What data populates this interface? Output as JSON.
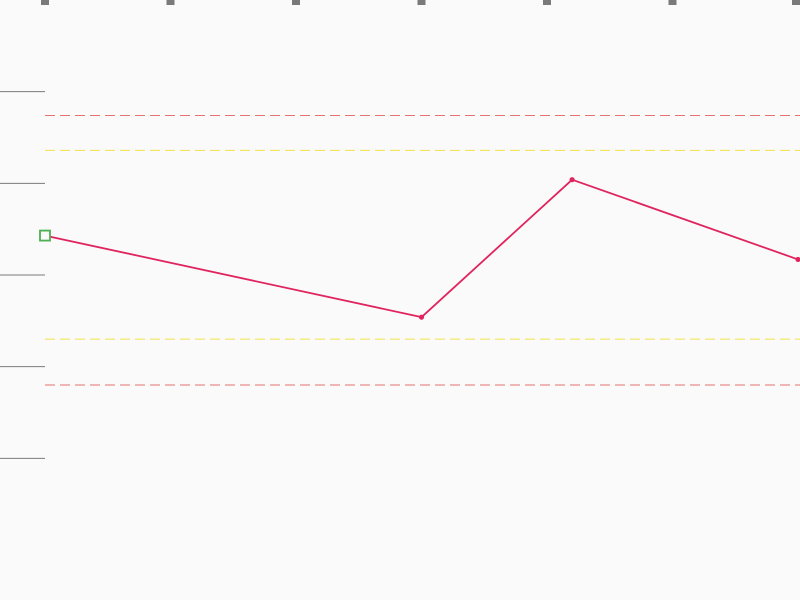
{
  "chart_data": {
    "type": "line",
    "title": "",
    "xlabel": "",
    "ylabel": "",
    "x": [
      0,
      3,
      4.2,
      6
    ],
    "xlim": [
      0,
      6
    ],
    "x_ticks": [
      0,
      1,
      2,
      3,
      4,
      5,
      6
    ],
    "ylim": [
      0,
      6
    ],
    "y_ticks": [
      1,
      2,
      3,
      4,
      5
    ],
    "series": [
      {
        "values": [
          3.43,
          2.54,
          4.04,
          3.17
        ],
        "color": "#e0245e"
      }
    ],
    "first_point_marker": {
      "shape": "hollow-square",
      "color": "#4caf50"
    },
    "reference_lines": [
      {
        "y": 4.74,
        "color": "#e57373",
        "style": "dashed"
      },
      {
        "y": 4.36,
        "color": "#f2e04b",
        "style": "dashed"
      },
      {
        "y": 2.3,
        "color": "#f2e04b",
        "style": "dashed"
      },
      {
        "y": 1.8,
        "color": "#e57373",
        "style": "dashed"
      }
    ],
    "axis_color": "#7a7a7a",
    "grid": false,
    "legend": "none"
  }
}
